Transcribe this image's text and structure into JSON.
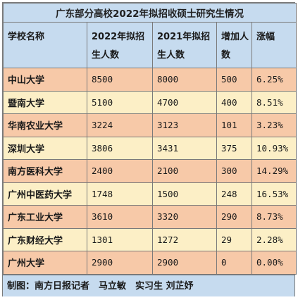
{
  "title": "广东部分高校2022年拟招收硕士研究生情况",
  "columns": [
    "学校名称",
    "2022年拟招生人数",
    "2021年拟招生人数",
    "增加人数",
    "涨幅"
  ],
  "rows": [
    {
      "school": "中山大学",
      "y2022": "8500",
      "y2021": "8000",
      "increase": "500",
      "growth": "6.25%"
    },
    {
      "school": "暨南大学",
      "y2022": "5100",
      "y2021": "4700",
      "increase": "400",
      "growth": "8.51%"
    },
    {
      "school": "华南农业大学",
      "y2022": "3224",
      "y2021": "3123",
      "increase": "101",
      "growth": "3.23%"
    },
    {
      "school": "深圳大学",
      "y2022": "3806",
      "y2021": "3431",
      "increase": "375",
      "growth": "10.93%"
    },
    {
      "school": "南方医科大学",
      "y2022": "2400",
      "y2021": "2100",
      "increase": "300",
      "growth": "14.29%"
    },
    {
      "school": "广州中医药大学",
      "y2022": "1748",
      "y2021": "1500",
      "increase": "248",
      "growth": "16.53%"
    },
    {
      "school": "广东工业大学",
      "y2022": "3610",
      "y2021": "3320",
      "increase": "290",
      "growth": "8.73%"
    },
    {
      "school": "广东财经大学",
      "y2022": "1301",
      "y2021": "1272",
      "increase": "29",
      "growth": "2.28%"
    },
    {
      "school": "广州大学",
      "y2022": "2900",
      "y2021": "2900",
      "increase": "0",
      "growth": "0.00%"
    }
  ],
  "footer": "制图：南方日报记者　马立敏　实习生 刘芷妤",
  "colors": {
    "header_bg": "#c6dbef",
    "row_odd_bg": "#f7c9a8",
    "row_even_bg": "#fcefc6",
    "border": "#7a7a7a"
  }
}
